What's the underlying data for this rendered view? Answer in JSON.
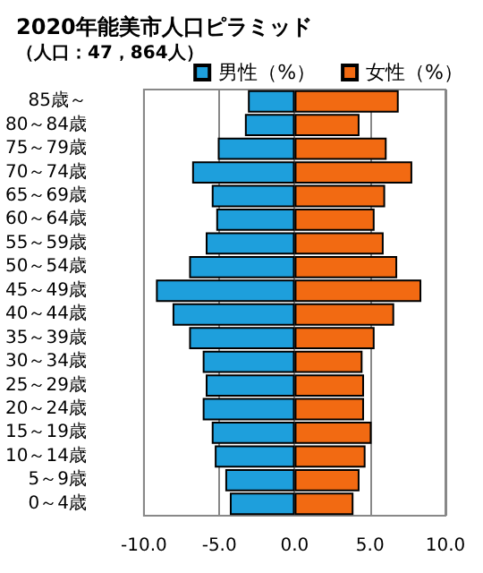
{
  "chart_data": {
    "type": "bar",
    "orientation": "horizontal",
    "title": "2020年能美市人口ピラミッド",
    "subtitle": "（人口：47，864人）",
    "categories": [
      "85歳～",
      "80～84歳",
      "75～79歳",
      "70～74歳",
      "65～69歳",
      "60～64歳",
      "55～59歳",
      "50～54歳",
      "45～49歳",
      "40～44歳",
      "35～39歳",
      "30～34歳",
      "25～29歳",
      "20～24歳",
      "15～19歳",
      "10～14歳",
      "5～9歳",
      "0～4歳"
    ],
    "series": [
      {
        "name": "男性（%）",
        "color": "#1e9fdc",
        "values": [
          -3.1,
          -3.3,
          -5.1,
          -6.8,
          -5.5,
          -5.2,
          -5.9,
          -7.0,
          -9.2,
          -8.1,
          -7.0,
          -6.1,
          -5.9,
          -6.1,
          -5.5,
          -5.3,
          -4.6,
          -4.3
        ]
      },
      {
        "name": "女性（%）",
        "color": "#f26a12",
        "values": [
          6.9,
          4.3,
          6.1,
          7.8,
          6.0,
          5.3,
          5.9,
          6.8,
          8.4,
          6.6,
          5.3,
          4.5,
          4.6,
          4.6,
          5.1,
          4.7,
          4.3,
          3.9
        ]
      }
    ],
    "xlim": [
      -10,
      10
    ],
    "xticks": [
      {
        "value": -10,
        "label": "-10.0"
      },
      {
        "value": -5,
        "label": "-5.0"
      },
      {
        "value": 0,
        "label": "0.0"
      },
      {
        "value": 5,
        "label": "5.0"
      },
      {
        "value": 10,
        "label": "10.0"
      }
    ],
    "grid": "x",
    "legend": "top right",
    "stacked": true
  }
}
